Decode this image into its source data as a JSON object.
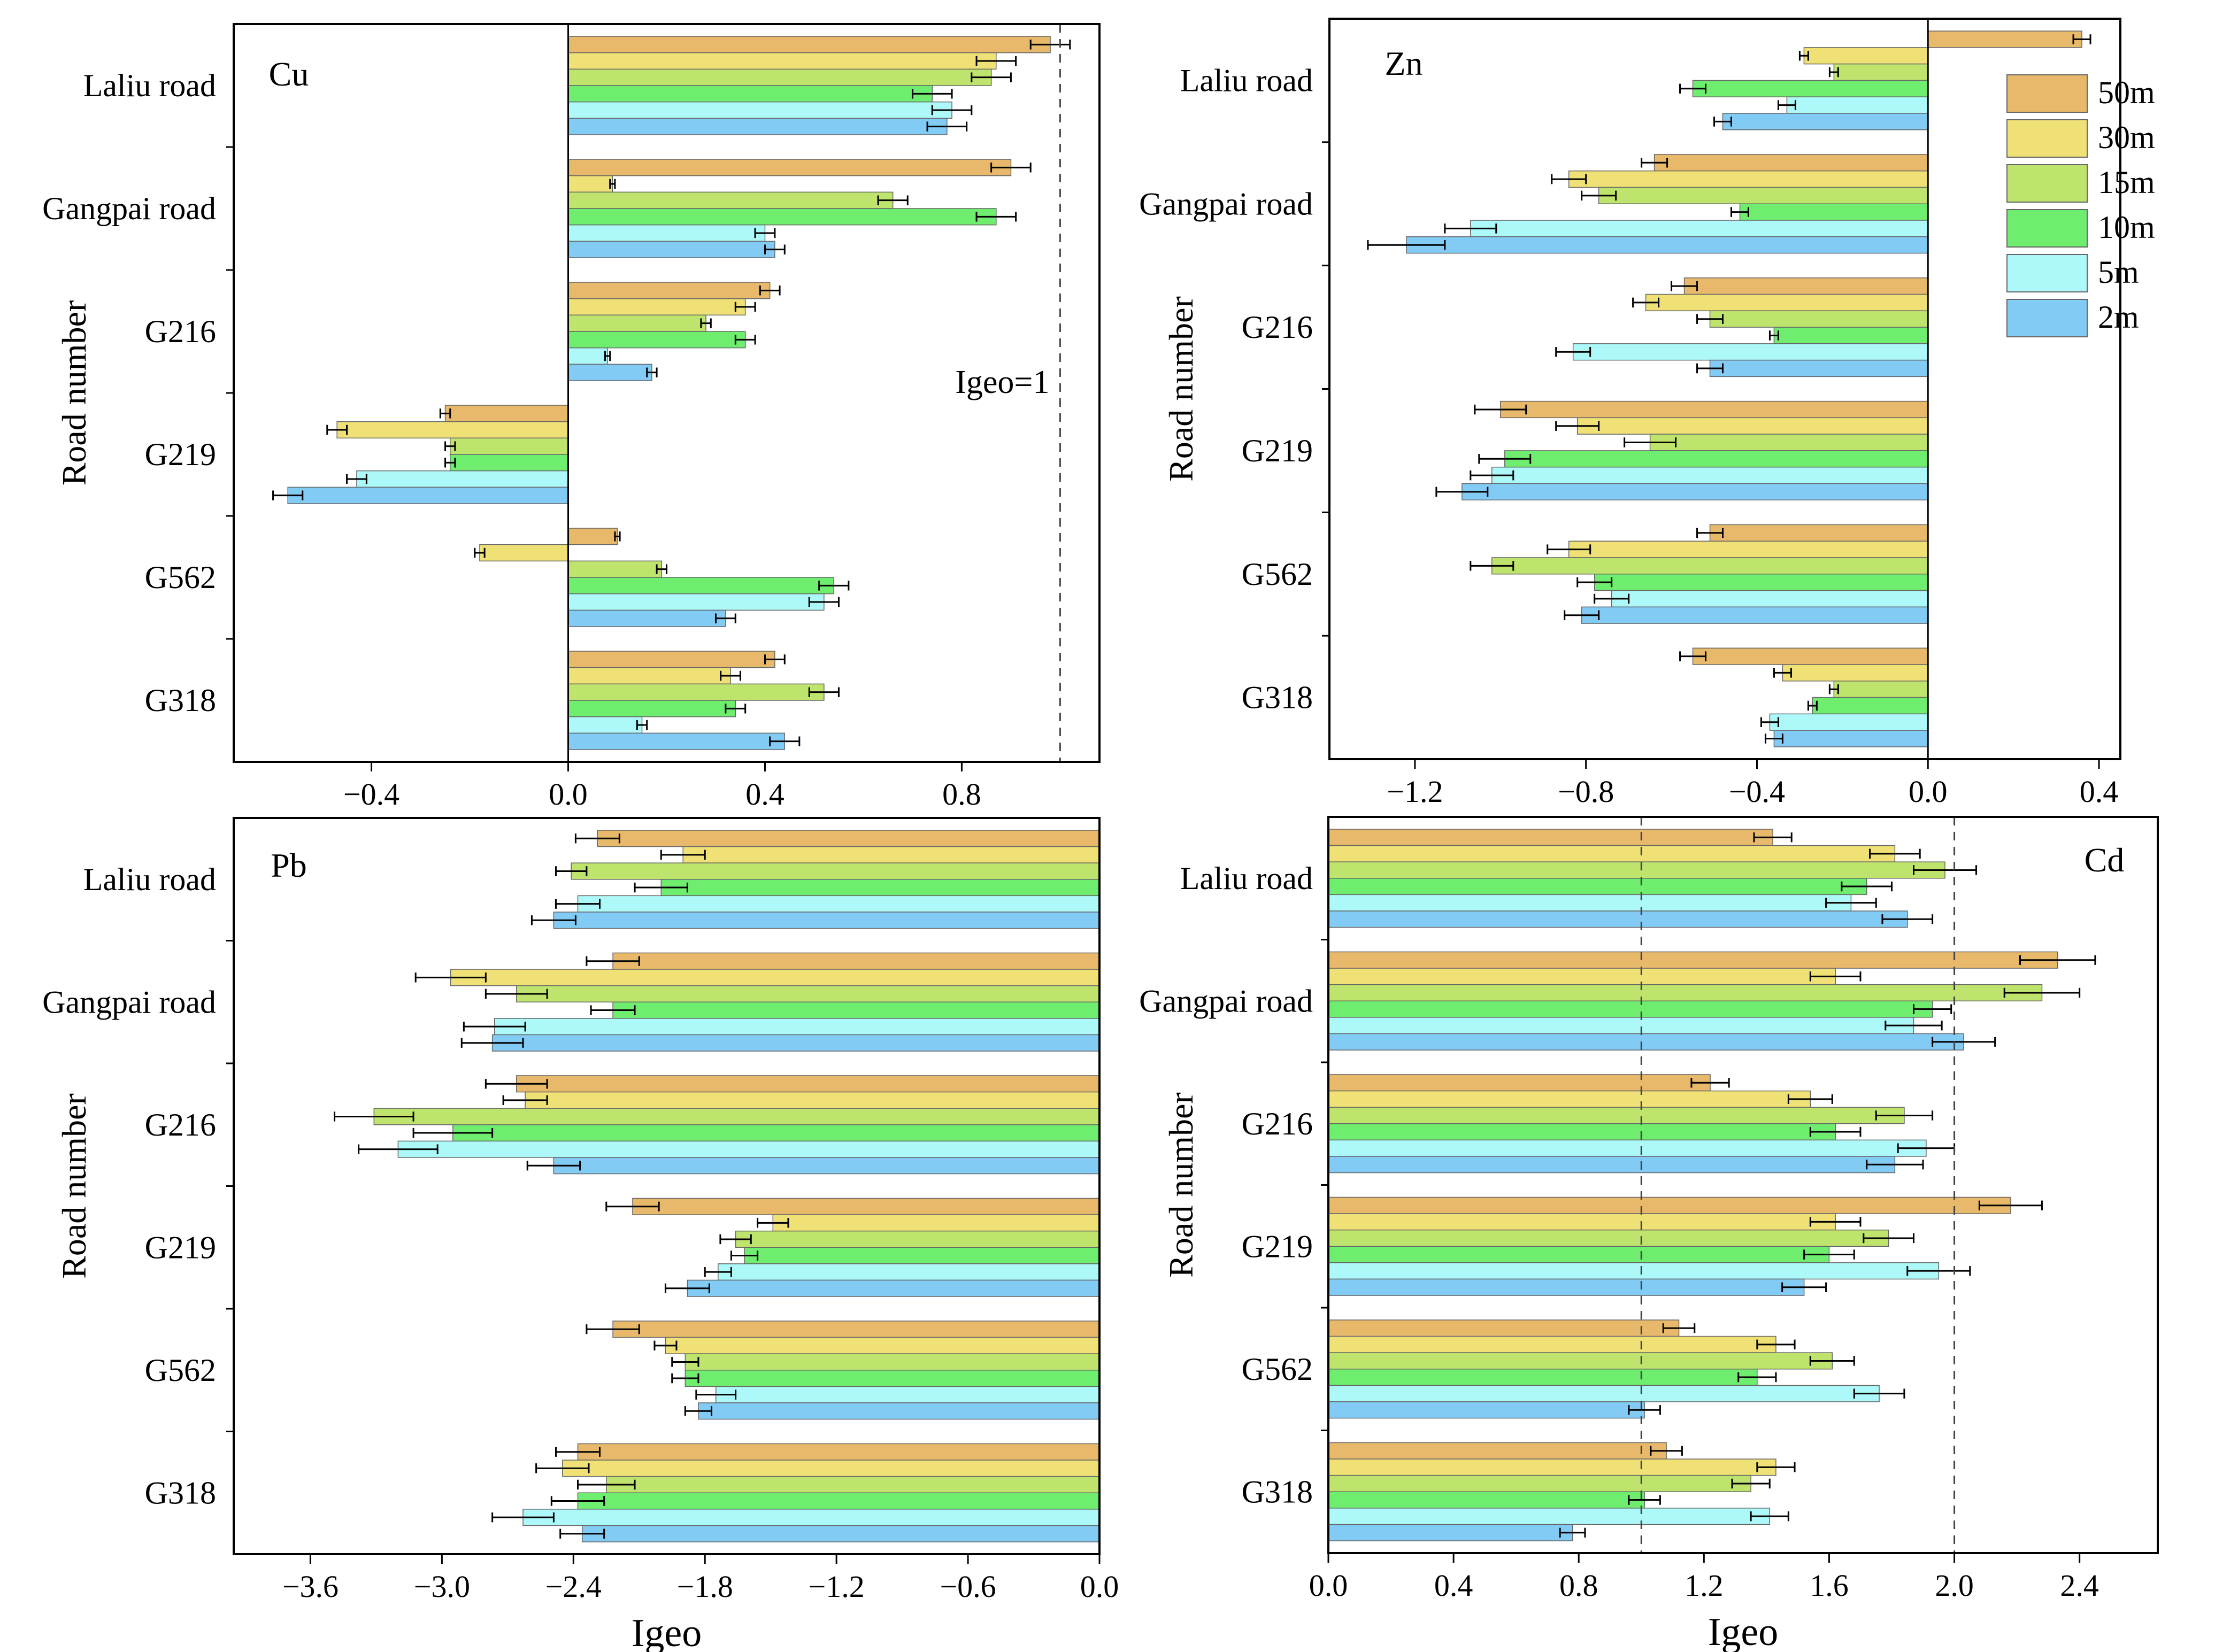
{
  "figure": {
    "legend": [
      {
        "name": "50m",
        "color": "#E8B96A"
      },
      {
        "name": "30m",
        "color": "#EFE176"
      },
      {
        "name": "15m",
        "color": "#BFE46E"
      },
      {
        "name": "10m",
        "color": "#6EED6E"
      },
      {
        "name": "5m",
        "color": "#ADF8F8"
      },
      {
        "name": "2m",
        "color": "#82CBF5"
      }
    ]
  },
  "chart_data": [
    {
      "type": "bar",
      "orientation": "horizontal",
      "panel": "Cu",
      "title": "Cu",
      "xlabel": "",
      "ylabel": "Road number",
      "xlim": [
        -0.68,
        1.08
      ],
      "xticks": [
        -0.4,
        0.0,
        0.4,
        0.8
      ],
      "tick_labels": [
        "−0.4",
        "0.0",
        "0.4",
        "0.8"
      ],
      "categories": [
        "Laliu road",
        "Gangpai road",
        "G216",
        "G219",
        "G562",
        "G318"
      ],
      "series": [
        {
          "name": "50m",
          "values": [
            0.98,
            0.9,
            0.41,
            -0.25,
            0.1,
            0.42
          ],
          "errors": [
            0.04,
            0.04,
            0.02,
            0.01,
            0.005,
            0.02
          ]
        },
        {
          "name": "30m",
          "values": [
            0.87,
            0.09,
            0.36,
            -0.47,
            -0.18,
            0.33
          ],
          "errors": [
            0.04,
            0.005,
            0.02,
            0.02,
            0.01,
            0.02
          ]
        },
        {
          "name": "15m",
          "values": [
            0.86,
            0.66,
            0.28,
            -0.24,
            0.19,
            0.52
          ],
          "errors": [
            0.04,
            0.03,
            0.01,
            0.01,
            0.01,
            0.03
          ]
        },
        {
          "name": "10m",
          "values": [
            0.74,
            0.87,
            0.36,
            -0.24,
            0.54,
            0.34
          ],
          "errors": [
            0.04,
            0.04,
            0.02,
            0.01,
            0.03,
            0.02
          ]
        },
        {
          "name": "5m",
          "values": [
            0.78,
            0.4,
            0.08,
            -0.43,
            0.52,
            0.15
          ],
          "errors": [
            0.04,
            0.02,
            0.005,
            0.02,
            0.03,
            0.01
          ]
        },
        {
          "name": "2m",
          "values": [
            0.77,
            0.42,
            0.17,
            -0.57,
            0.32,
            0.44
          ],
          "errors": [
            0.04,
            0.02,
            0.01,
            0.03,
            0.02,
            0.03
          ]
        }
      ],
      "reference_lines": [
        {
          "x": 1.0,
          "label": "Igeo=1"
        }
      ]
    },
    {
      "type": "bar",
      "orientation": "horizontal",
      "panel": "Zn",
      "title": "Zn",
      "xlabel": "",
      "ylabel": "Road number",
      "xlim": [
        -1.4,
        0.45
      ],
      "xticks": [
        -1.2,
        -0.8,
        -0.4,
        0.0,
        0.4
      ],
      "tick_labels": [
        "−1.2",
        "−0.8",
        "−0.4",
        "0.0",
        "0.4"
      ],
      "categories": [
        "Laliu road",
        "Gangpai road",
        "G216",
        "G219",
        "G562",
        "G318"
      ],
      "series": [
        {
          "name": "50m",
          "values": [
            0.36,
            -0.64,
            -0.57,
            -1.0,
            -0.51,
            -0.55
          ],
          "errors": [
            0.02,
            0.03,
            0.03,
            0.06,
            0.03,
            0.03
          ]
        },
        {
          "name": "30m",
          "values": [
            -0.29,
            -0.84,
            -0.66,
            -0.82,
            -0.84,
            -0.34
          ],
          "errors": [
            0.01,
            0.04,
            0.03,
            0.05,
            0.05,
            0.02
          ]
        },
        {
          "name": "15m",
          "values": [
            -0.22,
            -0.77,
            -0.51,
            -0.65,
            -1.02,
            -0.22
          ],
          "errors": [
            0.01,
            0.04,
            0.03,
            0.06,
            0.05,
            0.01
          ]
        },
        {
          "name": "10m",
          "values": [
            -0.55,
            -0.44,
            -0.36,
            -0.99,
            -0.78,
            -0.27
          ],
          "errors": [
            0.03,
            0.02,
            0.01,
            0.06,
            0.04,
            0.01
          ]
        },
        {
          "name": "5m",
          "values": [
            -0.33,
            -1.07,
            -0.83,
            -1.02,
            -0.74,
            -0.37
          ],
          "errors": [
            0.02,
            0.06,
            0.04,
            0.05,
            0.04,
            0.02
          ]
        },
        {
          "name": "2m",
          "values": [
            -0.48,
            -1.22,
            -0.51,
            -1.09,
            -0.81,
            -0.36
          ],
          "errors": [
            0.02,
            0.09,
            0.03,
            0.06,
            0.04,
            0.02
          ]
        }
      ]
    },
    {
      "type": "bar",
      "orientation": "horizontal",
      "panel": "Pb",
      "title": "Pb",
      "xlabel": "Igeo",
      "ylabel": "Road number",
      "xlim": [
        -3.95,
        0.0
      ],
      "xticks": [
        -3.6,
        -3.0,
        -2.4,
        -1.8,
        -1.2,
        -0.6,
        0.0
      ],
      "tick_labels": [
        "−3.6",
        "−3.0",
        "−2.4",
        "−1.8",
        "−1.2",
        "−0.6",
        "0.0"
      ],
      "categories": [
        "Laliu road",
        "Gangpai road",
        "G216",
        "G219",
        "G562",
        "G318"
      ],
      "series": [
        {
          "name": "50m",
          "values": [
            -2.29,
            -2.22,
            -2.66,
            -2.13,
            -2.22,
            -2.38
          ],
          "errors": [
            0.1,
            0.12,
            0.14,
            0.12,
            0.12,
            0.1
          ]
        },
        {
          "name": "30m",
          "values": [
            -1.9,
            -2.96,
            -2.62,
            -1.49,
            -1.98,
            -2.45
          ],
          "errors": [
            0.1,
            0.16,
            0.1,
            0.07,
            0.05,
            0.12
          ]
        },
        {
          "name": "15m",
          "values": [
            -2.41,
            -2.66,
            -3.31,
            -1.66,
            -1.89,
            -2.25
          ],
          "errors": [
            0.07,
            0.14,
            0.18,
            0.07,
            0.06,
            0.13
          ]
        },
        {
          "name": "10m",
          "values": [
            -2.0,
            -2.22,
            -2.95,
            -1.62,
            -1.89,
            -2.38
          ],
          "errors": [
            0.12,
            0.1,
            0.18,
            0.06,
            0.06,
            0.12
          ]
        },
        {
          "name": "5m",
          "values": [
            -2.38,
            -2.76,
            -3.2,
            -1.74,
            -1.75,
            -2.63
          ],
          "errors": [
            0.1,
            0.14,
            0.18,
            0.06,
            0.09,
            0.14
          ]
        },
        {
          "name": "2m",
          "values": [
            -2.49,
            -2.77,
            -2.49,
            -1.88,
            -1.83,
            -2.36
          ],
          "errors": [
            0.1,
            0.14,
            0.12,
            0.1,
            0.06,
            0.1
          ]
        }
      ]
    },
    {
      "type": "bar",
      "orientation": "horizontal",
      "panel": "Cd",
      "title": "Cd",
      "xlabel": "Igeo",
      "ylabel": "Road number",
      "xlim": [
        0.0,
        2.65
      ],
      "xticks": [
        0.0,
        0.4,
        0.8,
        1.2,
        1.6,
        2.0,
        2.4
      ],
      "tick_labels": [
        "0.0",
        "0.4",
        "0.8",
        "1.2",
        "1.6",
        "2.0",
        "2.4"
      ],
      "categories": [
        "Laliu road",
        "Gangpai road",
        "G216",
        "G219",
        "G562",
        "G318"
      ],
      "series": [
        {
          "name": "50m",
          "values": [
            1.42,
            2.33,
            1.22,
            2.18,
            1.12,
            1.08
          ],
          "errors": [
            0.06,
            0.12,
            0.06,
            0.1,
            0.05,
            0.05
          ]
        },
        {
          "name": "30m",
          "values": [
            1.81,
            1.62,
            1.54,
            1.62,
            1.43,
            1.43
          ],
          "errors": [
            0.08,
            0.08,
            0.07,
            0.08,
            0.06,
            0.06
          ]
        },
        {
          "name": "15m",
          "values": [
            1.97,
            2.28,
            1.84,
            1.79,
            1.61,
            1.35
          ],
          "errors": [
            0.1,
            0.12,
            0.09,
            0.08,
            0.07,
            0.06
          ]
        },
        {
          "name": "10m",
          "values": [
            1.72,
            1.93,
            1.62,
            1.6,
            1.37,
            1.01
          ],
          "errors": [
            0.08,
            0.06,
            0.08,
            0.08,
            0.06,
            0.05
          ]
        },
        {
          "name": "5m",
          "values": [
            1.67,
            1.87,
            1.91,
            1.95,
            1.76,
            1.41
          ],
          "errors": [
            0.08,
            0.09,
            0.09,
            0.1,
            0.08,
            0.06
          ]
        },
        {
          "name": "2m",
          "values": [
            1.85,
            2.03,
            1.81,
            1.52,
            1.01,
            0.78
          ],
          "errors": [
            0.08,
            0.1,
            0.09,
            0.07,
            0.05,
            0.04
          ]
        }
      ],
      "reference_lines": [
        {
          "x": 1.0,
          "label": ""
        },
        {
          "x": 2.0,
          "label": ""
        }
      ]
    }
  ]
}
